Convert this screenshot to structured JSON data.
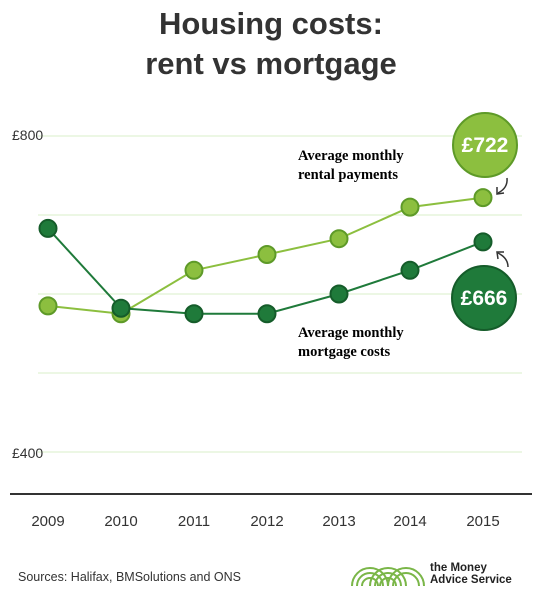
{
  "title_line1": "Housing costs:",
  "title_line2": "rent vs mortgage",
  "source": "Sources: Halifax, BMSolutions and ONS",
  "brand": {
    "line1": "the Money",
    "line2": "Advice Service"
  },
  "colors": {
    "rent": "#8cbf3f",
    "mortgage": "#1f7a3a",
    "mortgage_dark": "#155c2a",
    "grid": "#d9efc8",
    "axis": "#333333"
  },
  "chart_data": {
    "type": "line",
    "title": "Housing costs: rent vs mortgage",
    "x": [
      "2009",
      "2010",
      "2011",
      "2012",
      "2013",
      "2014",
      "2015"
    ],
    "ylim": [
      400,
      800
    ],
    "yticks": [
      "£800",
      "£400"
    ],
    "grid": true,
    "series": [
      {
        "name": "Average monthly rental payments",
        "label_lines": [
          "Average monthly",
          "rental payments"
        ],
        "values": [
          585,
          575,
          630,
          650,
          670,
          710,
          722
        ],
        "callout": "£722"
      },
      {
        "name": "Average monthly mortgage costs",
        "label_lines": [
          "Average monthly",
          "mortgage costs"
        ],
        "values": [
          683,
          582,
          575,
          575,
          600,
          630,
          666
        ],
        "callout": "£666"
      }
    ]
  }
}
